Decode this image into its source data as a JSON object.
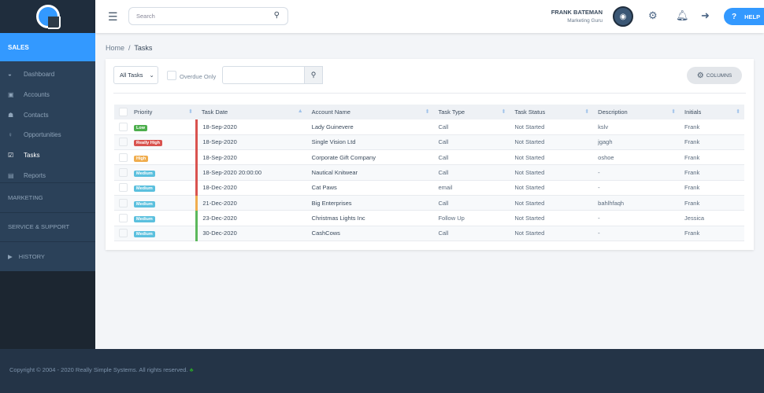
{
  "header": {
    "search_placeholder": "Search",
    "user_name": "FRANK BATEMAN",
    "user_role": "Marketing Guru",
    "help_label": "HELP"
  },
  "sidebar": {
    "section": "SALES",
    "items": [
      {
        "label": "Dashboard",
        "icon": "dashboard-icon"
      },
      {
        "label": "Accounts",
        "icon": "briefcase-icon"
      },
      {
        "label": "Contacts",
        "icon": "users-icon"
      },
      {
        "label": "Opportunities",
        "icon": "lightbulb-icon"
      },
      {
        "label": "Tasks",
        "icon": "checkbox-icon",
        "active": true
      },
      {
        "label": "Reports",
        "icon": "reports-icon"
      }
    ],
    "marketing": "MARKETING",
    "service": "SERVICE & SUPPORT",
    "history": "HISTORY"
  },
  "breadcrumb": {
    "home": "Home",
    "current": "Tasks"
  },
  "toolbar": {
    "filter": "All Tasks",
    "overdue_label": "Overdue Only",
    "filter_value": "",
    "columns_label": "COLUMNS"
  },
  "table": {
    "columns": [
      "Priority",
      "Task Date",
      "Account Name",
      "Task Type",
      "Task Status",
      "Description",
      "Initials"
    ],
    "rows": [
      {
        "priority": "Low",
        "pcolor": "#4cae4c",
        "date": "18-Sep-2020",
        "dcolor": "#d9534f",
        "account": "Lady Guinevere",
        "type": "Call",
        "status": "Not Started",
        "desc": "kslv",
        "initials": "Frank"
      },
      {
        "priority": "Really High",
        "pcolor": "#d9534f",
        "date": "18-Sep-2020",
        "dcolor": "#d9534f",
        "account": "Single Vision Ltd",
        "type": "Call",
        "status": "Not Started",
        "desc": "jgagh",
        "initials": "Frank"
      },
      {
        "priority": "High",
        "pcolor": "#f0ad4e",
        "date": "18-Sep-2020",
        "dcolor": "#d9534f",
        "account": "Corporate Gift Company",
        "type": "Call",
        "status": "Not Started",
        "desc": "oshoe",
        "initials": "Frank"
      },
      {
        "priority": "Medium",
        "pcolor": "#5bc0de",
        "date": "18-Sep-2020 20:00:00",
        "dcolor": "#d9534f",
        "account": "Nautical Knitwear",
        "type": "Call",
        "status": "Not Started",
        "desc": "-",
        "initials": "Frank"
      },
      {
        "priority": "Medium",
        "pcolor": "#5bc0de",
        "date": "18-Dec-2020",
        "dcolor": "#d9534f",
        "account": "Cat Paws",
        "type": "email",
        "status": "Not Started",
        "desc": "-",
        "initials": "Frank"
      },
      {
        "priority": "Medium",
        "pcolor": "#5bc0de",
        "date": "21-Dec-2020",
        "dcolor": "#f0ad4e",
        "account": "Big Enterprises",
        "type": "Call",
        "status": "Not Started",
        "desc": "bahlhfaqh",
        "initials": "Frank"
      },
      {
        "priority": "Medium",
        "pcolor": "#5bc0de",
        "date": "23-Dec-2020",
        "dcolor": "#5cb85c",
        "account": "Christmas Lights Inc",
        "type": "Follow Up",
        "status": "Not Started",
        "desc": "-",
        "initials": "Jessica"
      },
      {
        "priority": "Medium",
        "pcolor": "#5bc0de",
        "date": "30-Dec-2020",
        "dcolor": "#5cb85c",
        "account": "CashCows",
        "type": "Call",
        "status": "Not Started",
        "desc": "-",
        "initials": "Frank"
      }
    ]
  },
  "footer": {
    "copyright": "Copyright © 2004 - 2020 Really Simple Systems. All rights reserved."
  },
  "colors": {
    "accent": "#3399ff",
    "sidebar": "#2b4159",
    "footer": "#243447"
  }
}
